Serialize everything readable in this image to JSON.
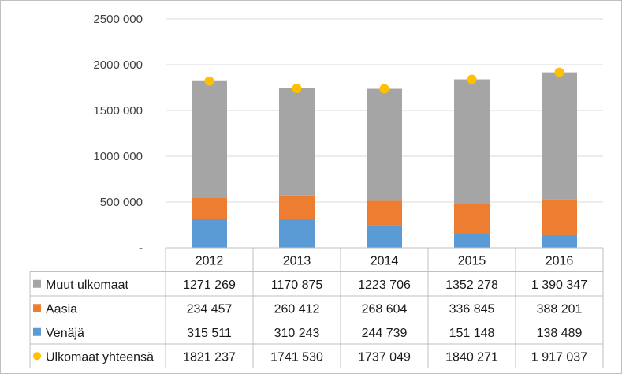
{
  "chart_data": {
    "type": "bar",
    "stacked": true,
    "categories": [
      "2012",
      "2013",
      "2014",
      "2015",
      "2016"
    ],
    "y_ticks": [
      "-",
      "500 000",
      "1000 000",
      "1500 000",
      "2000 000",
      "2500 000"
    ],
    "ylim": [
      0,
      2500000
    ],
    "grid": true,
    "legend_placement": "data-table",
    "series": [
      {
        "name": "Venäjä",
        "kind": "bar",
        "color": "#5b9bd5",
        "values": [
          315511,
          310243,
          244739,
          151148,
          138489
        ],
        "labels": [
          "315 511",
          "310 243",
          "244 739",
          "151 148",
          "138 489"
        ]
      },
      {
        "name": "Aasia",
        "kind": "bar",
        "color": "#ed7d31",
        "values": [
          234457,
          260412,
          268604,
          336845,
          388201
        ],
        "labels": [
          "234 457",
          "260 412",
          "268 604",
          "336 845",
          "388 201"
        ]
      },
      {
        "name": "Muut ulkomaat",
        "kind": "bar",
        "color": "#a5a5a5",
        "values": [
          1271269,
          1170875,
          1223706,
          1352278,
          1390347
        ],
        "labels": [
          "1271 269",
          "1170 875",
          "1223 706",
          "1352 278",
          "1 390 347"
        ]
      },
      {
        "name": "Ulkomaat yhteensä",
        "kind": "point",
        "color": "#ffc000",
        "values": [
          1821237,
          1741530,
          1737049,
          1840271,
          1917037
        ],
        "labels": [
          "1821 237",
          "1741 530",
          "1737 049",
          "1840 271",
          "1 917 037"
        ]
      }
    ],
    "table_row_order": [
      "Muut ulkomaat",
      "Aasia",
      "Venäjä",
      "Ulkomaat yhteensä"
    ]
  }
}
